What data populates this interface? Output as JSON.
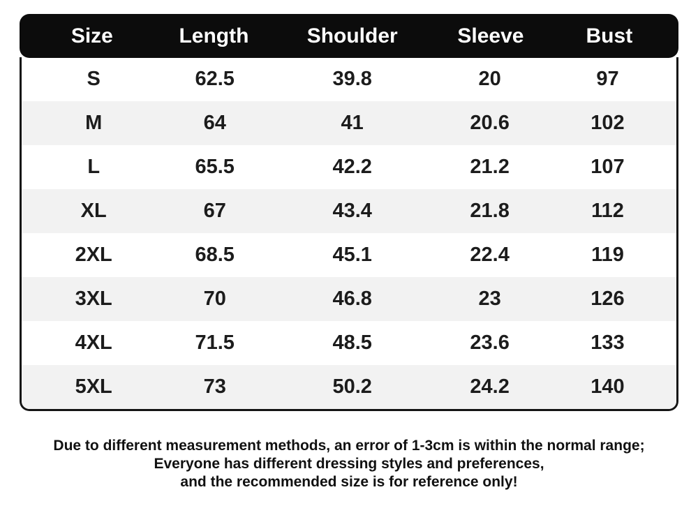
{
  "chart_data": {
    "type": "table",
    "columns": [
      "Size",
      "Length",
      "Shoulder",
      "Sleeve",
      "Bust"
    ],
    "rows": [
      [
        "S",
        "62.5",
        "39.8",
        "20",
        "97"
      ],
      [
        "M",
        "64",
        "41",
        "20.6",
        "102"
      ],
      [
        "L",
        "65.5",
        "42.2",
        "21.2",
        "107"
      ],
      [
        "XL",
        "67",
        "43.4",
        "21.8",
        "112"
      ],
      [
        "2XL",
        "68.5",
        "45.1",
        "22.4",
        "119"
      ],
      [
        "3XL",
        "70",
        "46.8",
        "23",
        "126"
      ],
      [
        "4XL",
        "71.5",
        "48.5",
        "23.6",
        "133"
      ],
      [
        "5XL",
        "73",
        "50.2",
        "24.2",
        "140"
      ]
    ]
  },
  "disclaimer": {
    "line1": "Due to different measurement methods, an error of 1-3cm is within the normal range;",
    "line2": "Everyone has different dressing styles and preferences,",
    "line3": "and the recommended size is for reference only!"
  },
  "colors": {
    "header_bg": "#0c0c0c",
    "header_text": "#ffffff",
    "row_alt_bg": "#f2f2f2",
    "body_text": "#1c1c1c",
    "border": "#141414"
  }
}
